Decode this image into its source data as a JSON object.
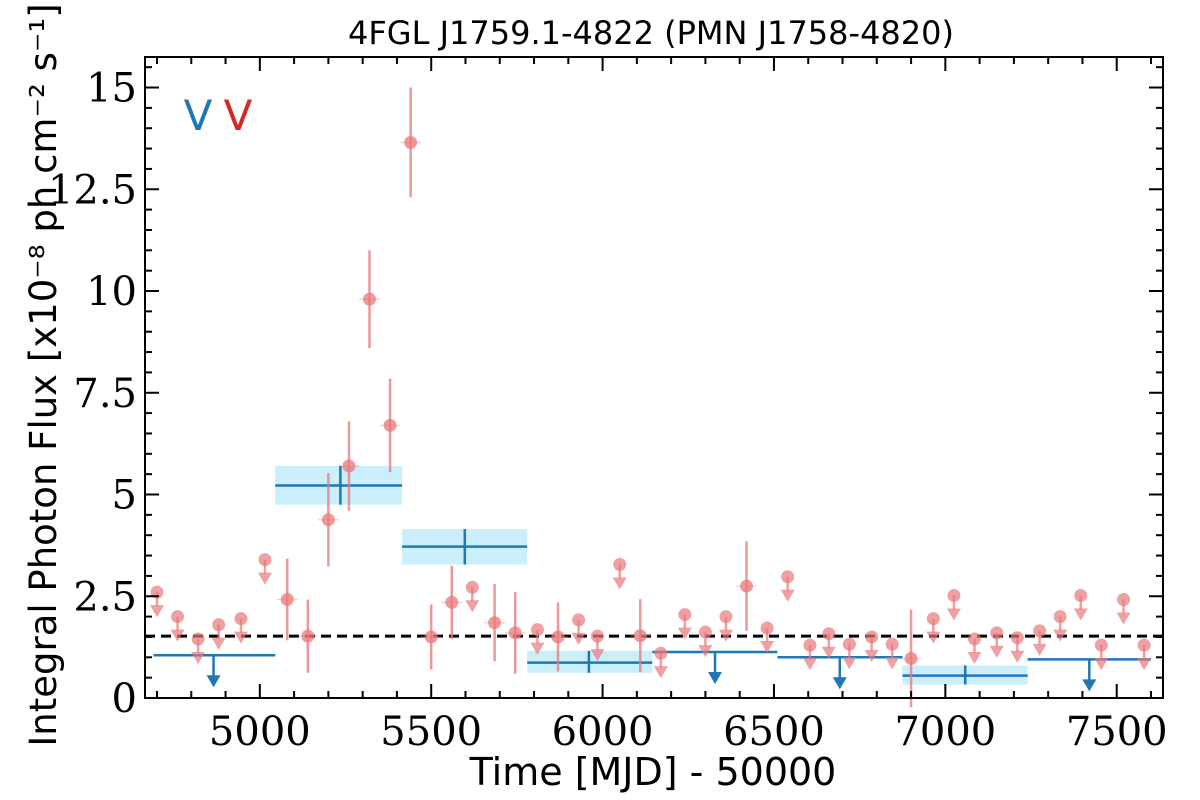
{
  "chart_data": {
    "type": "scatter",
    "title": "4FGL J1759.1-4822 (PMN J1758-4820)",
    "xlabel": "Time [MJD] - 50000",
    "ylabel": "Integral Photon Flux [x10⁻⁸ ph cm⁻² s⁻¹]",
    "xlim": [
      4665,
      7635
    ],
    "ylim": [
      0,
      15.75
    ],
    "xticks": [
      5000,
      5500,
      6000,
      6500,
      7000,
      7500
    ],
    "xtick_labels": [
      "5000",
      "5500",
      "6000",
      "6500",
      "7000",
      "7500"
    ],
    "yticks": [
      0,
      2.5,
      5,
      7.5,
      10,
      12.5,
      15
    ],
    "ytick_labels": [
      "0",
      "2.5",
      "5",
      "7.5",
      "10",
      "12.5",
      "15"
    ],
    "reference_line": {
      "y": 1.52,
      "style": "dashed",
      "color": "#000000"
    },
    "variability_flags": [
      {
        "text": "V",
        "color": "#1f77b4"
      },
      {
        "text": "V",
        "color": "#d62728"
      }
    ],
    "series": [
      {
        "color": "#e8787a",
        "bin_width_days": 60,
        "detections": [
          {
            "x": 5080,
            "y": 2.42,
            "err": 1.0
          },
          {
            "x": 5140,
            "y": 1.52,
            "err": 0.9
          },
          {
            "x": 5200,
            "y": 4.38,
            "err": 1.15
          },
          {
            "x": 5260,
            "y": 5.7,
            "err": 1.1
          },
          {
            "x": 5320,
            "y": 9.8,
            "err": 1.2
          },
          {
            "x": 5380,
            "y": 6.7,
            "err": 1.15
          },
          {
            "x": 5440,
            "y": 13.65,
            "err": 1.35
          },
          {
            "x": 5500,
            "y": 1.5,
            "err": 0.8
          },
          {
            "x": 5560,
            "y": 2.35,
            "err": 0.9
          },
          {
            "x": 5685,
            "y": 1.85,
            "err": 0.95
          },
          {
            "x": 5745,
            "y": 1.6,
            "err": 1.0
          },
          {
            "x": 5870,
            "y": 1.5,
            "err": 0.85
          },
          {
            "x": 6110,
            "y": 1.53,
            "err": 0.9
          },
          {
            "x": 6420,
            "y": 2.75,
            "err": 1.1
          },
          {
            "x": 6900,
            "y": 0.97,
            "err": 1.2
          }
        ],
        "upper_limits": [
          {
            "x": 4700,
            "y": 2.6
          },
          {
            "x": 4760,
            "y": 2.0
          },
          {
            "x": 4820,
            "y": 1.45
          },
          {
            "x": 4880,
            "y": 1.8
          },
          {
            "x": 4945,
            "y": 1.95
          },
          {
            "x": 5015,
            "y": 3.4
          },
          {
            "x": 5620,
            "y": 2.72
          },
          {
            "x": 5810,
            "y": 1.68
          },
          {
            "x": 5930,
            "y": 1.92
          },
          {
            "x": 5985,
            "y": 1.52
          },
          {
            "x": 6050,
            "y": 3.28
          },
          {
            "x": 6170,
            "y": 1.1
          },
          {
            "x": 6240,
            "y": 2.05
          },
          {
            "x": 6300,
            "y": 1.62
          },
          {
            "x": 6360,
            "y": 2.0
          },
          {
            "x": 6480,
            "y": 1.72
          },
          {
            "x": 6540,
            "y": 2.98
          },
          {
            "x": 6605,
            "y": 1.3
          },
          {
            "x": 6660,
            "y": 1.58
          },
          {
            "x": 6720,
            "y": 1.32
          },
          {
            "x": 6785,
            "y": 1.5
          },
          {
            "x": 6845,
            "y": 1.32
          },
          {
            "x": 6965,
            "y": 1.95
          },
          {
            "x": 7025,
            "y": 2.52
          },
          {
            "x": 7085,
            "y": 1.45
          },
          {
            "x": 7150,
            "y": 1.6
          },
          {
            "x": 7210,
            "y": 1.48
          },
          {
            "x": 7275,
            "y": 1.65
          },
          {
            "x": 7335,
            "y": 2.0
          },
          {
            "x": 7395,
            "y": 2.52
          },
          {
            "x": 7455,
            "y": 1.3
          },
          {
            "x": 7520,
            "y": 2.42
          },
          {
            "x": 7580,
            "y": 1.3
          }
        ]
      },
      {
        "color": "#1f77b4",
        "band_color": "#cbeefb",
        "blocks": [
          {
            "x0": 4690,
            "x1": 5045,
            "y": 1.05,
            "upper_limit": true,
            "marker_x": 4865
          },
          {
            "x0": 5045,
            "x1": 5415,
            "y": 5.22,
            "ylo": 4.75,
            "yhi": 5.7,
            "err_x": 5235
          },
          {
            "x0": 5415,
            "x1": 5780,
            "y": 3.72,
            "ylo": 3.28,
            "yhi": 4.15,
            "err_x": 5598
          },
          {
            "x0": 5780,
            "x1": 6145,
            "y": 0.87,
            "ylo": 0.62,
            "yhi": 1.16,
            "err_x": 5960
          },
          {
            "x0": 6145,
            "x1": 6510,
            "y": 1.13,
            "upper_limit": true,
            "marker_x": 6328
          },
          {
            "x0": 6510,
            "x1": 6875,
            "y": 1.0,
            "upper_limit": true,
            "marker_x": 6692
          },
          {
            "x0": 6875,
            "x1": 7240,
            "y": 0.55,
            "ylo": 0.33,
            "yhi": 0.8,
            "err_x": 7058
          },
          {
            "x0": 7240,
            "x1": 7600,
            "y": 0.95,
            "upper_limit": true,
            "marker_x": 7420
          }
        ]
      }
    ]
  }
}
